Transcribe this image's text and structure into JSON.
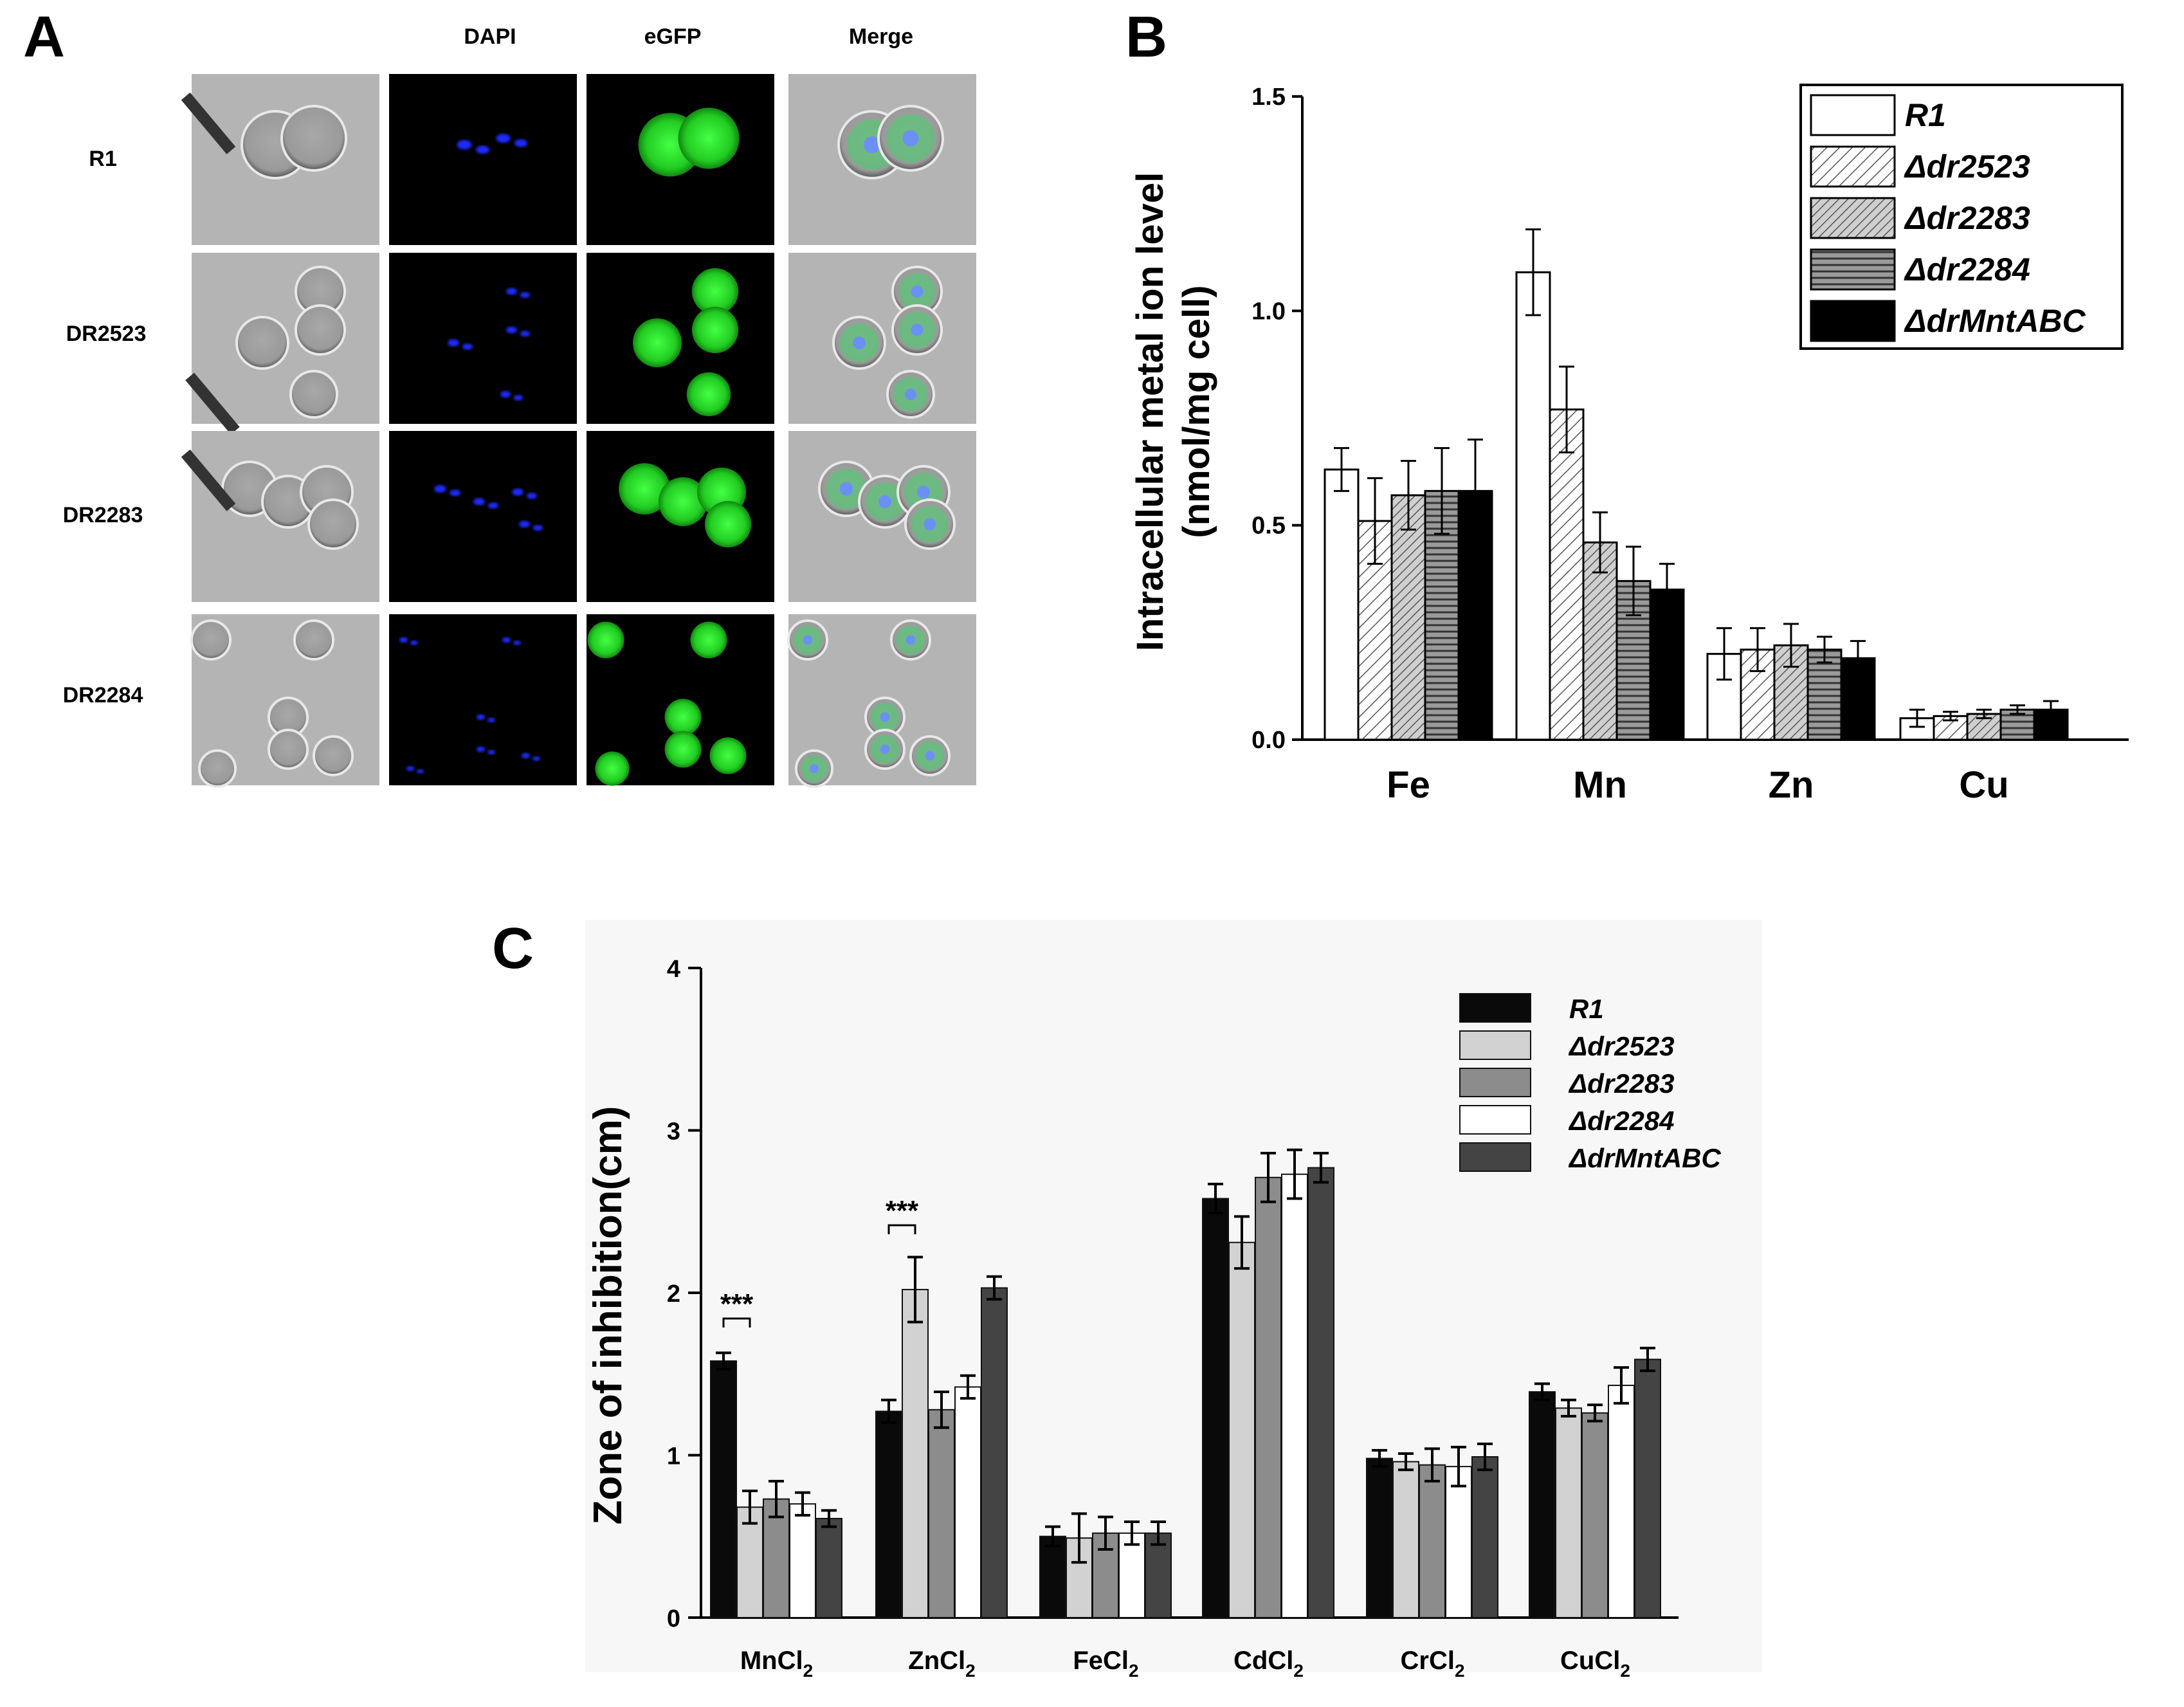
{
  "panel_a": {
    "letter": "A",
    "columns": [
      "",
      "DAPI",
      "eGFP",
      "Merge"
    ],
    "rows": [
      "R1",
      "DR2523",
      "DR2283",
      "DR2284"
    ],
    "colors": {
      "dapi": "#1a2cff",
      "egfp": "#22dd22",
      "bright": "#b4b4b4"
    }
  },
  "chart_data": [
    {
      "panel": "B",
      "type": "bar",
      "categories": [
        "Fe",
        "Mn",
        "Zn",
        "Cu"
      ],
      "ylabel_line1": "Intracellular metal ion level",
      "ylabel_line2": "(nmol/mg cell)",
      "ylim": [
        0,
        1.5
      ],
      "yticks": [
        "0.0",
        "0.5",
        "1.0",
        "1.5"
      ],
      "legend_position": "top-right",
      "series": [
        {
          "name": "R1",
          "fill": "white",
          "values": [
            0.63,
            1.09,
            0.2,
            0.05
          ],
          "errors": [
            0.05,
            0.1,
            0.06,
            0.02
          ]
        },
        {
          "name": "Δdr2523",
          "fill": "hatch-light",
          "values": [
            0.51,
            0.77,
            0.21,
            0.055
          ],
          "errors": [
            0.1,
            0.1,
            0.05,
            0.01
          ]
        },
        {
          "name": "Δdr2283",
          "fill": "hatch-dense",
          "values": [
            0.57,
            0.46,
            0.22,
            0.06
          ],
          "errors": [
            0.08,
            0.07,
            0.05,
            0.01
          ]
        },
        {
          "name": "Δdr2284",
          "fill": "horizontal-lines",
          "values": [
            0.58,
            0.37,
            0.21,
            0.07
          ],
          "errors": [
            0.1,
            0.08,
            0.03,
            0.01
          ]
        },
        {
          "name": "ΔdrMntABC",
          "fill": "black",
          "values": [
            0.58,
            0.35,
            0.19,
            0.07
          ],
          "errors": [
            0.12,
            0.06,
            0.04,
            0.02
          ]
        }
      ]
    },
    {
      "panel": "C",
      "type": "bar",
      "categories": [
        "MnCl",
        "ZnCl",
        "FeCl",
        "CdCl",
        "CrCl",
        "CuCl"
      ],
      "category_subscript": "2",
      "ylabel": "Zone of inhibition(cm)",
      "ylim": [
        0,
        4
      ],
      "yticks": [
        "0",
        "1",
        "2",
        "3",
        "4"
      ],
      "legend_position": "top-right",
      "significance": [
        {
          "category": "MnCl",
          "label": "***"
        },
        {
          "category": "ZnCl",
          "label": "***"
        }
      ],
      "series": [
        {
          "name": "R1",
          "color": "#0a0a0a",
          "values": [
            1.58,
            1.27,
            0.5,
            2.58,
            0.98,
            1.39
          ],
          "errors": [
            0.05,
            0.07,
            0.06,
            0.09,
            0.05,
            0.05
          ]
        },
        {
          "name": "Δdr2523",
          "color": "#d2d2d2",
          "values": [
            0.68,
            2.02,
            0.49,
            2.31,
            0.96,
            1.29
          ],
          "errors": [
            0.1,
            0.2,
            0.15,
            0.16,
            0.05,
            0.05
          ]
        },
        {
          "name": "Δdr2283",
          "color": "#8c8c8c",
          "values": [
            0.73,
            1.28,
            0.52,
            2.71,
            0.94,
            1.26
          ],
          "errors": [
            0.11,
            0.11,
            0.1,
            0.15,
            0.1,
            0.05
          ]
        },
        {
          "name": "Δdr2284",
          "color": "#ffffff",
          "values": [
            0.7,
            1.42,
            0.52,
            2.73,
            0.93,
            1.43
          ],
          "errors": [
            0.07,
            0.07,
            0.07,
            0.15,
            0.12,
            0.11
          ]
        },
        {
          "name": "ΔdrMntABC",
          "color": "#444444",
          "values": [
            0.61,
            2.03,
            0.52,
            2.77,
            0.99,
            1.59
          ],
          "errors": [
            0.05,
            0.07,
            0.07,
            0.09,
            0.08,
            0.07
          ]
        }
      ]
    }
  ]
}
